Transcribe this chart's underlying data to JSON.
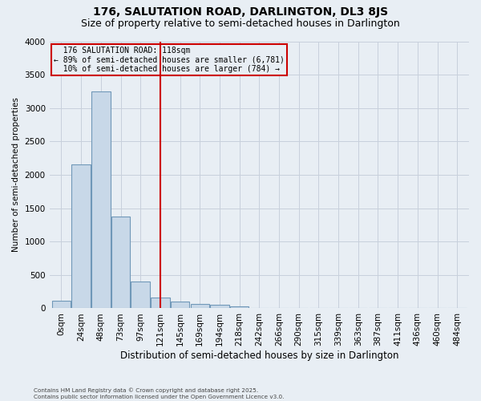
{
  "title1": "176, SALUTATION ROAD, DARLINGTON, DL3 8JS",
  "title2": "Size of property relative to semi-detached houses in Darlington",
  "xlabel": "Distribution of semi-detached houses by size in Darlington",
  "ylabel": "Number of semi-detached properties",
  "footnote": "Contains HM Land Registry data © Crown copyright and database right 2025.\nContains public sector information licensed under the Open Government Licence v3.0.",
  "bar_labels": [
    "0sqm",
    "24sqm",
    "48sqm",
    "73sqm",
    "97sqm",
    "121sqm",
    "145sqm",
    "169sqm",
    "194sqm",
    "218sqm",
    "242sqm",
    "266sqm",
    "290sqm",
    "315sqm",
    "339sqm",
    "363sqm",
    "387sqm",
    "411sqm",
    "436sqm",
    "460sqm",
    "484sqm"
  ],
  "bar_values": [
    110,
    2150,
    3250,
    1370,
    400,
    160,
    100,
    60,
    50,
    30,
    0,
    0,
    0,
    0,
    0,
    0,
    0,
    0,
    0,
    0,
    0
  ],
  "bar_color": "#c8d8e8",
  "bar_edge_color": "#7098b8",
  "vline_index": 5,
  "property_label": "176 SALUTATION ROAD: 118sqm",
  "pct_smaller": 89,
  "n_smaller": 6781,
  "pct_larger": 10,
  "n_larger": 784,
  "vline_color": "#cc0000",
  "ylim": [
    0,
    4000
  ],
  "yticks": [
    0,
    500,
    1000,
    1500,
    2000,
    2500,
    3000,
    3500,
    4000
  ],
  "grid_color": "#c8d0dc",
  "bg_color": "#e8eef4",
  "title1_fontsize": 10,
  "title2_fontsize": 9
}
